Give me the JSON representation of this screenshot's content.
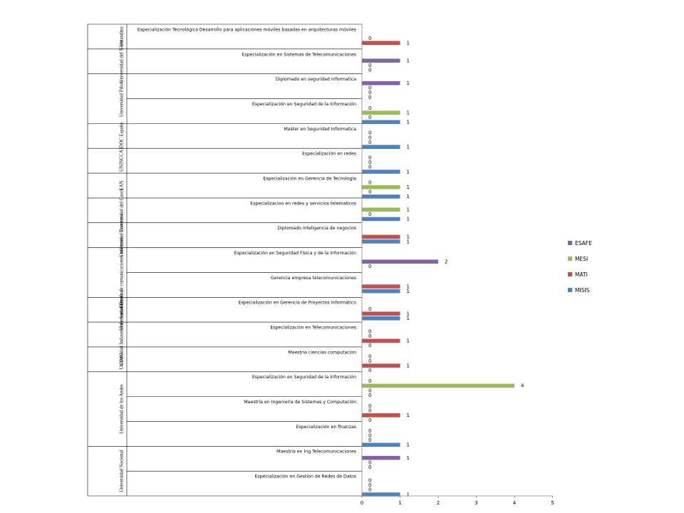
{
  "chart_data": {
    "type": "bar",
    "orientation": "horizontal",
    "xlim": [
      0,
      5
    ],
    "xticks": [
      "0",
      "1",
      "2",
      "3",
      "4",
      "5"
    ],
    "grid": false,
    "legend_position": "right",
    "series": [
      {
        "name": "MISIS",
        "color": "#4f81bd"
      },
      {
        "name": "MATI",
        "color": "#c0504d"
      },
      {
        "name": "MESI",
        "color": "#9bbb59"
      },
      {
        "name": "ESAFE",
        "color": "#8064a2"
      }
    ],
    "legend": [
      "ESAFE",
      "MESI",
      "MATI",
      "MISIS"
    ],
    "groups": [
      {
        "name": "Uniandina",
        "items": [
          {
            "label": "Especialización Tecnológica Desarrollo para aplicaciones móviles basadas en arquitecturas móviles",
            "values": {
              "MATI": 1,
              "ESAFE": 0
            }
          }
        ]
      },
      {
        "name": "Universidad del Norte",
        "items": [
          {
            "label": "Especialización en Sistemas de Telecomunicaciones",
            "values": {
              "ESAFE": 1,
              "MESI": 0,
              "MATI": 0
            }
          }
        ]
      },
      {
        "name": "Universidad Piloto",
        "items": [
          {
            "label": "Diplomado en seguridad informatica",
            "values": {
              "ESAFE": 1,
              "MESI": 0,
              "MATI": 0,
              "MISIS": 0
            }
          },
          {
            "label": "Especialización en Seguridad de la Información",
            "values": {
              "ESAFE": 0,
              "MESI": 1,
              "MATI": 0,
              "MISIS": 1
            }
          }
        ]
      },
      {
        "name": "IDOC España",
        "items": [
          {
            "label": "Master en Seguridad Informatica",
            "values": {
              "ESAFE": 0,
              "MESI": 0,
              "MATI": 0,
              "MISIS": 1
            }
          }
        ]
      },
      {
        "name": "UNINCCA",
        "items": [
          {
            "label": "Especialización en redes",
            "values": {
              "ESAFE": 0,
              "MESI": 0,
              "MATI": 0,
              "MISIS": 1
            }
          }
        ]
      },
      {
        "name": "EAN",
        "items": [
          {
            "label": "Especialización en Gerencia de Tecnología",
            "values": {
              "ESAFE": 0,
              "MESI": 1,
              "MATI": 0,
              "MISIS": 1
            }
          }
        ]
      },
      {
        "name": "Universidad del Cauca",
        "items": [
          {
            "label": "Especializacion en redes y servicios telematicos",
            "values": {
              "MESI": 1,
              "MATI": 0,
              "MISIS": 1
            }
          }
        ]
      },
      {
        "name": "Universidad Javeriana",
        "items": [
          {
            "label": "Diplomado inteligencia de negocios",
            "values": {
              "MATI": 1,
              "MISIS": 1
            }
          }
        ]
      },
      {
        "name": "Escuela de comunicaciones militares",
        "items": [
          {
            "label": "Especialización en Seguridad Física y de la Información",
            "values": {
              "ESAFE": 2,
              "MATI": 0
            }
          },
          {
            "label": "Gerencia empresa telecomunicaciones",
            "values": {
              "MATI": 1,
              "MISIS": 1
            }
          }
        ]
      },
      {
        "name": "Universidad Distrital",
        "items": [
          {
            "label": "Especialización en Gerencia de Proyectos Informático",
            "values": {
              "MESI": 0,
              "MATI": 1,
              "MISIS": 1
            }
          }
        ]
      },
      {
        "name": "Universidad Industrial de Santander",
        "items": [
          {
            "label": "Especialización en Telecomunicaciones",
            "values": {
              "ESAFE": 0,
              "MESI": 0,
              "MATI": 1,
              "MISIS": 0
            }
          }
        ]
      },
      {
        "name": "CIMO",
        "items": [
          {
            "label": "Maestria ciencias computacion",
            "values": {
              "ESAFE": 0,
              "MESI": 0,
              "MATI": 1,
              "MISIS": 0
            }
          }
        ]
      },
      {
        "name": "Universidad de los Andes",
        "items": [
          {
            "label": "Especialización en Seguridad de la Información",
            "values": {
              "ESAFE": 0,
              "MESI": 4,
              "MATI": 0,
              "MISIS": 0
            }
          },
          {
            "label": "Maestría en Ingeniería de Sistemas y Computación",
            "values": {
              "ESAFE": 0,
              "MESI": 0,
              "MATI": 1,
              "MISIS": 0
            }
          },
          {
            "label": "Especialización en finanzas",
            "values": {
              "ESAFE": 0,
              "MESI": 0,
              "MATI": 0,
              "MISIS": 1
            }
          }
        ]
      },
      {
        "name": "Universidad Nacional",
        "items": [
          {
            "label": "Maestría en Ing Telecomunicaciones",
            "values": {
              "ESAFE": 1,
              "MESI": 0,
              "MATI": 0
            }
          },
          {
            "label": "Especialización en Gestión de Redes de Datos",
            "values": {
              "ESAFE": 0,
              "MESI": 0,
              "MATI": 0,
              "MISIS": 1
            }
          }
        ]
      }
    ]
  }
}
